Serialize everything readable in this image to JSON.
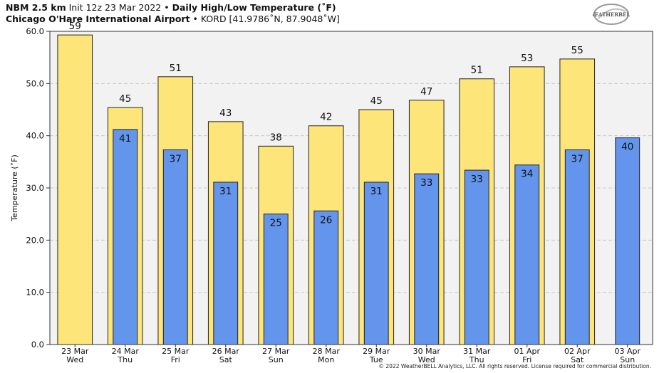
{
  "header": {
    "model": "NBM 2.5 km",
    "init": "Init 12z 23 Mar 2022",
    "sep": "•",
    "product": "Daily High/Low Temperature (˚F)",
    "station_name": "Chicago O'Hare International Airport",
    "station_info": "KORD [41.9786˚N, 87.9048˚W]"
  },
  "logo": {
    "text": "WEATHERBELL",
    "icon": "weatherbell-swirl-logo"
  },
  "footer": {
    "copyright": "© 2022 WeatherBELL Analytics, LLC. All rights reserved. License required for commercial distribution."
  },
  "colors": {
    "high": "#fde57a",
    "low": "#6495ed",
    "plot_bg": "#f2f2f2",
    "grid": "#c8c8c8"
  },
  "chart_data": {
    "type": "bar",
    "ylabel": "Temperature (˚F)",
    "ylim": [
      0,
      60
    ],
    "yticks": [
      "0.0",
      "10.0",
      "20.0",
      "30.0",
      "40.0",
      "50.0",
      "60.0"
    ],
    "grid": "horizontal-dashed",
    "categories": [
      {
        "date": "23 Mar",
        "day": "Wed"
      },
      {
        "date": "24 Mar",
        "day": "Thu"
      },
      {
        "date": "25 Mar",
        "day": "Fri"
      },
      {
        "date": "26 Mar",
        "day": "Sat"
      },
      {
        "date": "27 Mar",
        "day": "Sun"
      },
      {
        "date": "28 Mar",
        "day": "Mon"
      },
      {
        "date": "29 Mar",
        "day": "Tue"
      },
      {
        "date": "30 Mar",
        "day": "Wed"
      },
      {
        "date": "31 Mar",
        "day": "Thu"
      },
      {
        "date": "01 Apr",
        "day": "Fri"
      },
      {
        "date": "02 Apr",
        "day": "Sat"
      },
      {
        "date": "03 Apr",
        "day": "Sun"
      }
    ],
    "series": [
      {
        "key": "high",
        "values": [
          59.3,
          45.4,
          51.3,
          42.7,
          38.0,
          41.9,
          45.0,
          46.8,
          50.9,
          53.2,
          54.7,
          null
        ]
      },
      {
        "key": "low",
        "values": [
          null,
          41.2,
          37.3,
          31.1,
          25.0,
          25.6,
          31.1,
          32.7,
          33.4,
          34.4,
          37.3,
          39.6
        ]
      }
    ]
  }
}
